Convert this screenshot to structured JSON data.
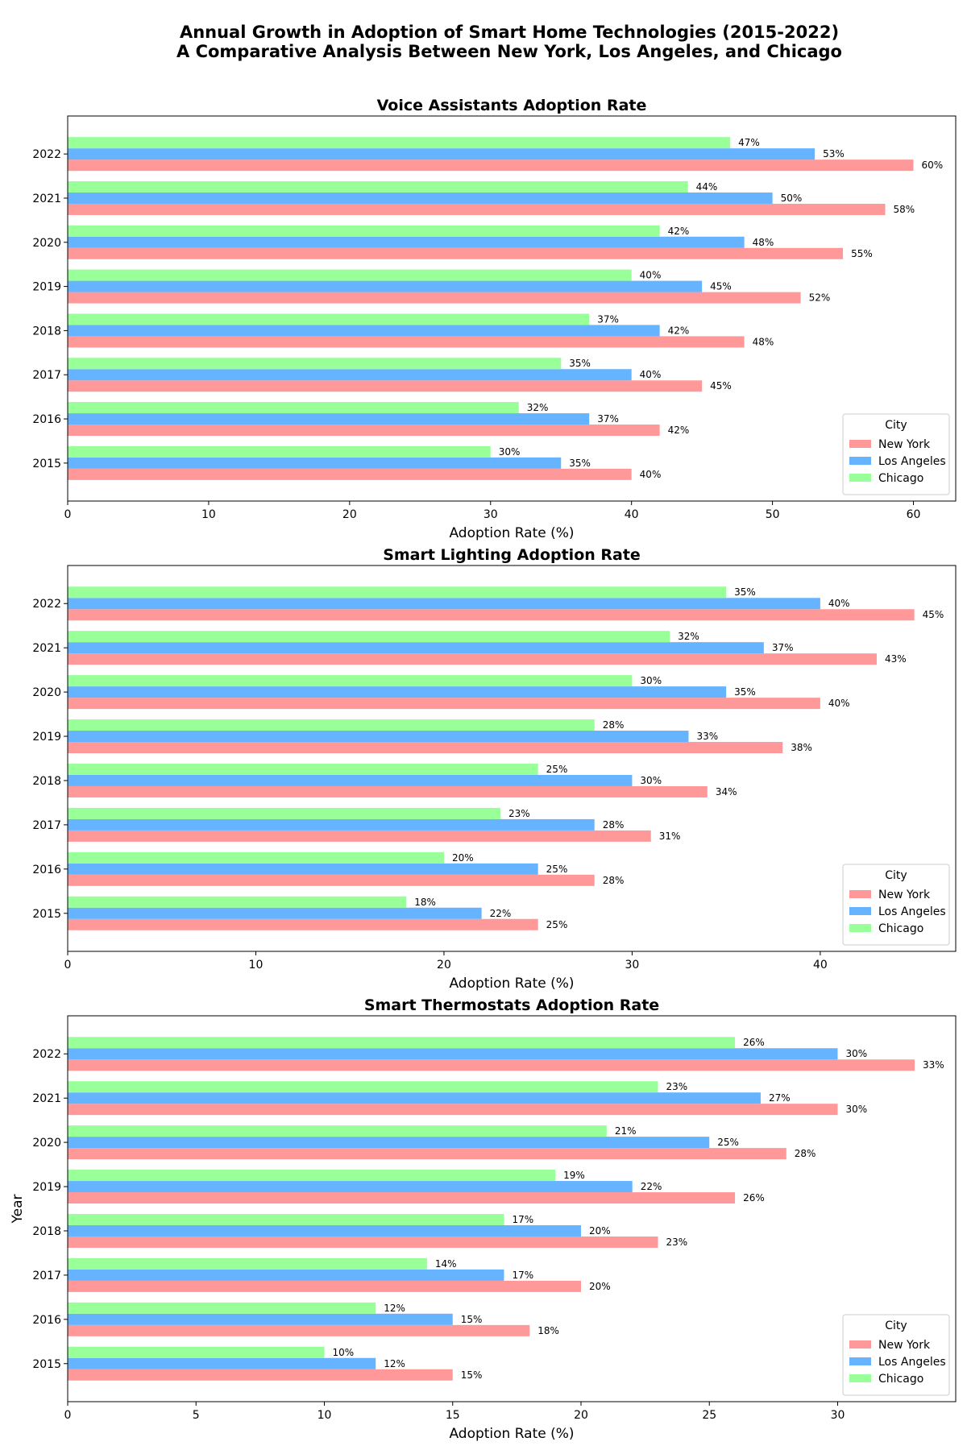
{
  "figure": {
    "title_line1": "Annual Growth in Adoption of Smart Home Technologies (2015-2022)",
    "title_line2": "A Comparative Analysis Between New York, Los Angeles, and Chicago"
  },
  "colors": {
    "New York": "#ff9999",
    "Los Angeles": "#66b3ff",
    "Chicago": "#99ff99"
  },
  "chart_data": [
    {
      "type": "bar",
      "orientation": "horizontal",
      "title": "Voice Assistants Adoption Rate",
      "xlabel": "Adoption Rate (%)",
      "ylabel": "",
      "categories": [
        "2015",
        "2016",
        "2017",
        "2018",
        "2019",
        "2020",
        "2021",
        "2022"
      ],
      "series": [
        {
          "name": "New York",
          "values": [
            40,
            42,
            45,
            48,
            52,
            55,
            58,
            60
          ]
        },
        {
          "name": "Los Angeles",
          "values": [
            35,
            37,
            40,
            42,
            45,
            48,
            50,
            53
          ]
        },
        {
          "name": "Chicago",
          "values": [
            30,
            32,
            35,
            37,
            40,
            42,
            44,
            47
          ]
        }
      ],
      "xlim": [
        0,
        63
      ],
      "xticks": [
        0,
        10,
        20,
        30,
        40,
        50,
        60
      ],
      "value_suffix": "%",
      "legend": {
        "title": "City",
        "placement": "lower-right"
      },
      "grid": false
    },
    {
      "type": "bar",
      "orientation": "horizontal",
      "title": "Smart Lighting Adoption Rate",
      "xlabel": "Adoption Rate (%)",
      "ylabel": "",
      "categories": [
        "2015",
        "2016",
        "2017",
        "2018",
        "2019",
        "2020",
        "2021",
        "2022"
      ],
      "series": [
        {
          "name": "New York",
          "values": [
            25,
            28,
            31,
            34,
            38,
            40,
            43,
            45
          ]
        },
        {
          "name": "Los Angeles",
          "values": [
            22,
            25,
            28,
            30,
            33,
            35,
            37,
            40
          ]
        },
        {
          "name": "Chicago",
          "values": [
            18,
            20,
            23,
            25,
            28,
            30,
            32,
            35
          ]
        }
      ],
      "xlim": [
        0,
        47.2
      ],
      "xticks": [
        0,
        10,
        20,
        30,
        40
      ],
      "value_suffix": "%",
      "legend": {
        "title": "City",
        "placement": "lower-right"
      },
      "grid": false
    },
    {
      "type": "bar",
      "orientation": "horizontal",
      "title": "Smart Thermostats Adoption Rate",
      "xlabel": "Adoption Rate (%)",
      "ylabel": "Year",
      "categories": [
        "2015",
        "2016",
        "2017",
        "2018",
        "2019",
        "2020",
        "2021",
        "2022"
      ],
      "series": [
        {
          "name": "New York",
          "values": [
            15,
            18,
            20,
            23,
            26,
            28,
            30,
            33
          ]
        },
        {
          "name": "Los Angeles",
          "values": [
            12,
            15,
            17,
            20,
            22,
            25,
            27,
            30
          ]
        },
        {
          "name": "Chicago",
          "values": [
            10,
            12,
            14,
            17,
            19,
            21,
            23,
            26
          ]
        }
      ],
      "xlim": [
        0,
        34.6
      ],
      "xticks": [
        0,
        5,
        10,
        15,
        20,
        25,
        30
      ],
      "value_suffix": "%",
      "legend": {
        "title": "City",
        "placement": "lower-right"
      },
      "grid": false
    }
  ]
}
